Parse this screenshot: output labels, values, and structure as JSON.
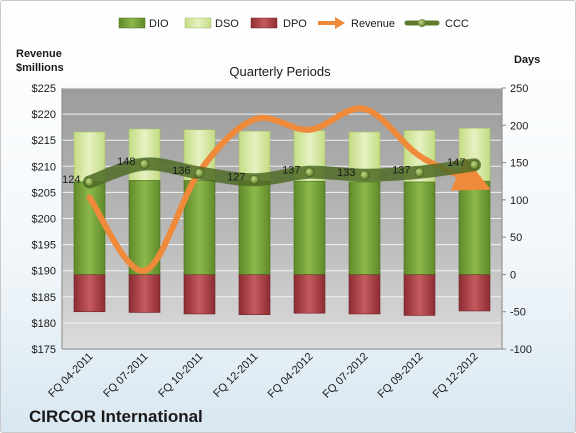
{
  "company": "CIRCOR International",
  "chart_data": {
    "type": "bar",
    "title": "Quarterly Periods",
    "left_axis": {
      "label_line1": "Revenue",
      "label_line2": "$millions",
      "ylim": [
        175,
        225
      ],
      "ticks": [
        "$175",
        "$180",
        "$185",
        "$190",
        "$195",
        "$200",
        "$205",
        "$210",
        "$215",
        "$220",
        "$225"
      ]
    },
    "right_axis": {
      "label": "Days",
      "ylim": [
        -100,
        250
      ],
      "ticks": [
        "-100",
        "-50",
        "0",
        "50",
        "100",
        "150",
        "200",
        "250"
      ]
    },
    "categories": [
      "FQ 04-2011",
      "FQ 07-2011",
      "FQ 10-2011",
      "FQ 12-2011",
      "FQ 04-2012",
      "FQ 07-2012",
      "FQ 09-2012",
      "FQ 12-2012"
    ],
    "series": [
      {
        "name": "DIO",
        "kind": "bar",
        "color": "#7aa33a",
        "values": [
          124,
          126,
          126,
          125,
          125,
          124,
          124,
          125
        ]
      },
      {
        "name": "DSO",
        "kind": "bar",
        "color": "#d6e8a4",
        "values": [
          67,
          69,
          68,
          67,
          68,
          67,
          69,
          71
        ]
      },
      {
        "name": "DPO",
        "kind": "bar",
        "color": "#b5474c",
        "values": [
          -50,
          -51,
          -53,
          -54,
          -52,
          -53,
          -55,
          -49
        ]
      },
      {
        "name": "Revenue",
        "kind": "line",
        "axis": "left",
        "color": "#ee8a3a",
        "values": [
          204,
          190,
          209,
          219,
          217,
          221,
          212,
          207
        ]
      },
      {
        "name": "CCC",
        "kind": "line",
        "axis": "right",
        "color": "#5e7b2e",
        "values": [
          124,
          148,
          136,
          127,
          137,
          133,
          137,
          147
        ]
      }
    ],
    "data_labels": [
      "124",
      "148",
      "136",
      "127",
      "137",
      "133",
      "137",
      "147"
    ],
    "grid": true,
    "legend_position": "top"
  }
}
